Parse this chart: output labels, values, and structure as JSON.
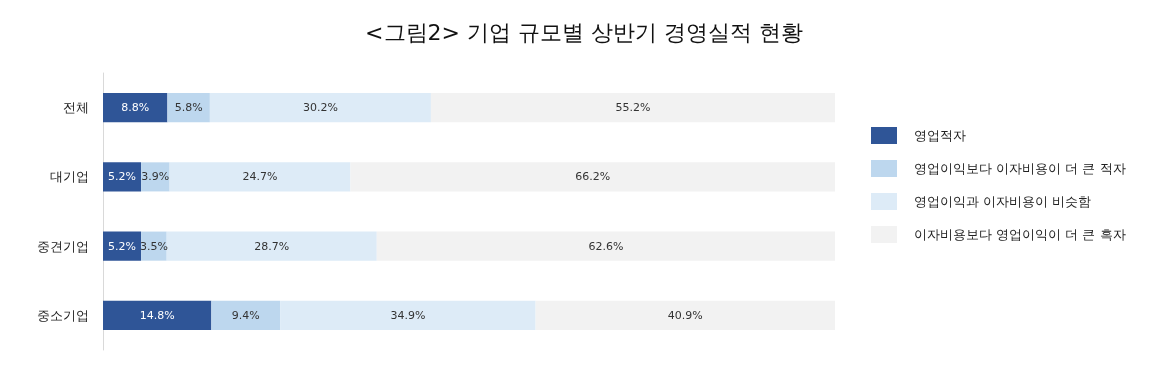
{
  "chart_data": {
    "type": "bar",
    "orientation": "horizontal",
    "stacked": true,
    "title": "<그림2> 기업 규모별 상반기 경영실적 현황",
    "categories": [
      "전체",
      "대기업",
      "중견기업",
      "중소기업"
    ],
    "legend": "right",
    "series": [
      {
        "name": "영업적자",
        "color": "#2f5597",
        "values": [
          8.8,
          5.2,
          5.2,
          14.8
        ],
        "value_labels": [
          "8.8%",
          "5.2%",
          "5.2%",
          "14.8%"
        ]
      },
      {
        "name": "영업이익보다 이자비용이 더 큰 적자",
        "color": "#bdd7ee",
        "values": [
          5.8,
          3.9,
          3.5,
          9.4
        ],
        "value_labels": [
          "5.8%",
          "3.9%",
          "3.5%",
          "9.4%"
        ]
      },
      {
        "name": "영업이익과 이자비용이 비슷함",
        "color": "#ddebf7",
        "values": [
          30.2,
          24.7,
          28.7,
          34.9
        ],
        "value_labels": [
          "30.2%",
          "24.7%",
          "28.7%",
          "34.9%"
        ]
      },
      {
        "name": "이자비용보다 영업이익이 더 큰 흑자",
        "color": "#f2f2f2",
        "values": [
          55.2,
          66.2,
          62.6,
          40.9
        ],
        "value_labels": [
          "55.2%",
          "66.2%",
          "62.6%",
          "40.9%"
        ]
      }
    ]
  }
}
